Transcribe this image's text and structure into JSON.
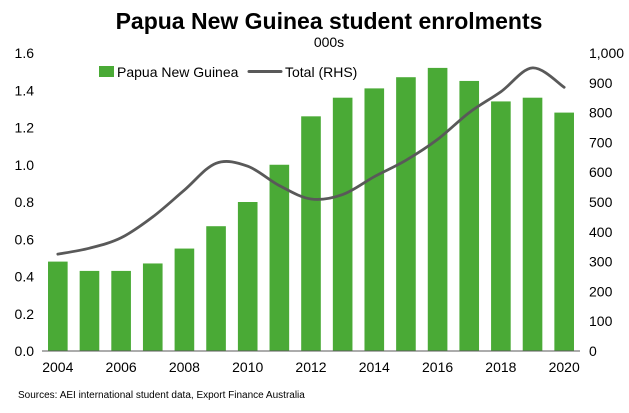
{
  "chart_data": {
    "type": "bar",
    "title": "Papua New Guinea student enrolments",
    "subtitle": "000s",
    "source": "Sources: AEI international student data, Export Finance Australia",
    "x": [
      2004,
      2005,
      2006,
      2007,
      2008,
      2009,
      2010,
      2011,
      2012,
      2013,
      2014,
      2015,
      2016,
      2017,
      2018,
      2019,
      2020
    ],
    "x_tick_labels": [
      "2004",
      "2006",
      "2008",
      "2010",
      "2012",
      "2014",
      "2016",
      "2018",
      "2020"
    ],
    "y_left_ticks": [
      "0.0",
      "0.2",
      "0.4",
      "0.6",
      "0.8",
      "1.0",
      "1.2",
      "1.4",
      "1.6"
    ],
    "y_right_ticks": [
      "0",
      "100",
      "200",
      "300",
      "400",
      "500",
      "600",
      "700",
      "800",
      "900",
      "1,000"
    ],
    "ylim_left": [
      0,
      1.6
    ],
    "ylim_right": [
      0,
      1000
    ],
    "series": [
      {
        "name": "Papua New Guinea",
        "type": "bar",
        "axis": "left",
        "color": "#4aaa36",
        "values": [
          0.48,
          0.43,
          0.43,
          0.47,
          0.55,
          0.67,
          0.8,
          1.0,
          1.26,
          1.36,
          1.41,
          1.47,
          1.52,
          1.45,
          1.34,
          1.36,
          1.28
        ]
      },
      {
        "name": "Total (RHS)",
        "type": "line",
        "axis": "right",
        "color": "#595959",
        "values": [
          325,
          345,
          380,
          450,
          540,
          630,
          620,
          555,
          510,
          525,
          585,
          640,
          710,
          800,
          870,
          950,
          885
        ]
      }
    ],
    "legend_position": "top-left",
    "grid": false
  }
}
